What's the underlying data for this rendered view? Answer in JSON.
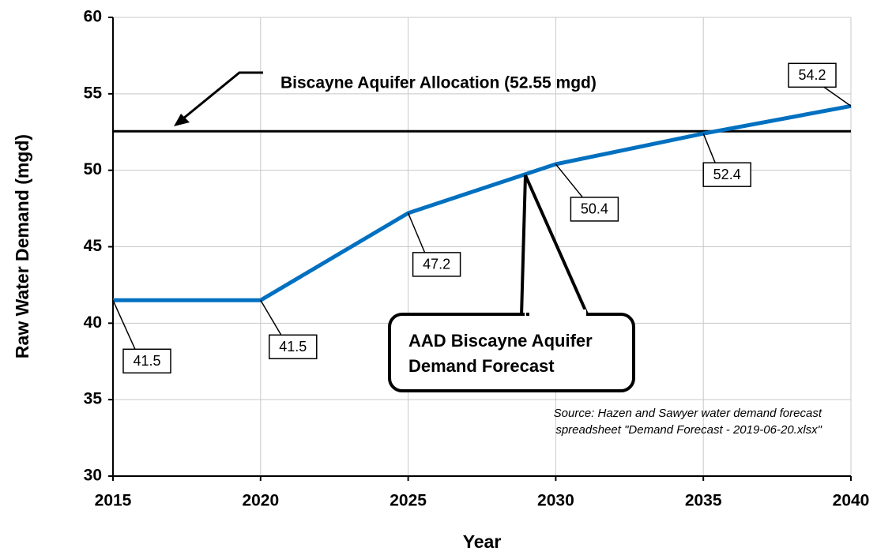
{
  "chart_data": {
    "type": "line",
    "x_label": "Year",
    "y_label": "Raw Water Demand (mgd)",
    "x": [
      2015,
      2020,
      2025,
      2030,
      2035,
      2040
    ],
    "series": [
      {
        "name": "AAD Biscayne Aquifer Demand Forecast",
        "color": "#0070c0",
        "values": [
          41.5,
          41.5,
          47.2,
          50.4,
          52.4,
          54.2
        ]
      }
    ],
    "callout": [
      "AAD Biscayne Aquifer",
      "Demand Forecast"
    ],
    "reference_line": {
      "value": 52.55,
      "label": "Biscayne Aquifer Allocation (52.55 mgd)"
    },
    "source": [
      "Source: Hazen and Sawyer water demand forecast",
      "spreadsheet \"Demand Forecast - 2019-06-20.xlsx\""
    ],
    "xlim": [
      2015,
      2040
    ],
    "xticks": [
      2015,
      2020,
      2025,
      2030,
      2035,
      2040
    ],
    "ylim": [
      30,
      60
    ],
    "yticks": [
      30,
      35,
      40,
      45,
      50,
      55,
      60
    ],
    "grid": true
  }
}
